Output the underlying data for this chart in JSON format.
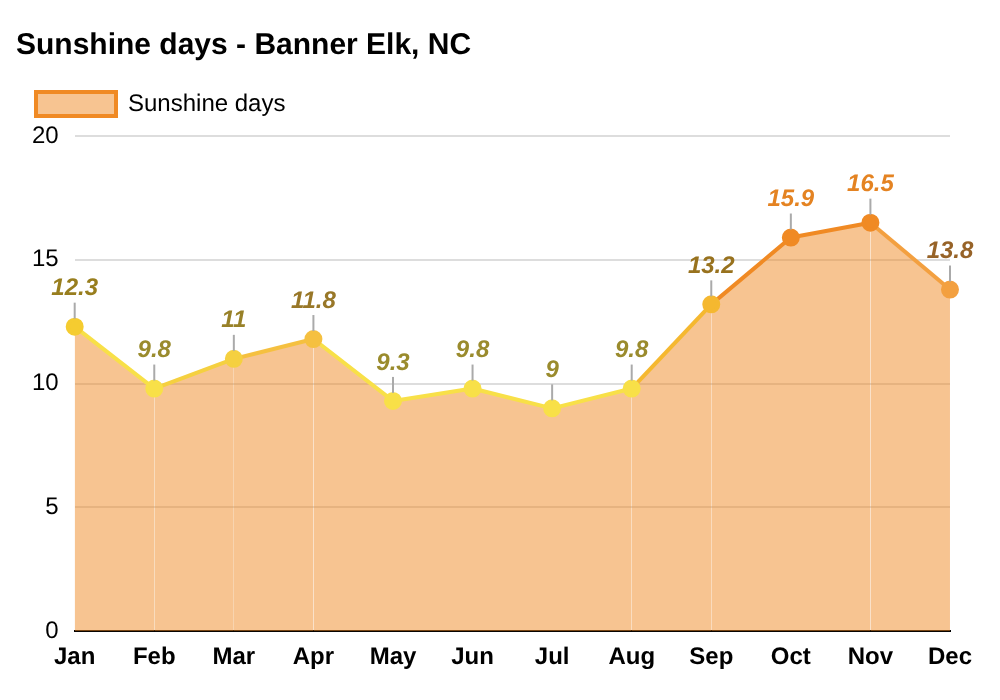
{
  "chart_data": {
    "type": "area",
    "title": "Sunshine days - Banner Elk, NC",
    "categories": [
      "Jan",
      "Feb",
      "Mar",
      "Apr",
      "May",
      "Jun",
      "Jul",
      "Aug",
      "Sep",
      "Oct",
      "Nov",
      "Dec"
    ],
    "series": [
      {
        "name": "Sunshine days",
        "color": "#f08a24",
        "values": [
          12.3,
          9.8,
          11,
          11.8,
          9.3,
          9.8,
          9,
          9.8,
          13.2,
          15.9,
          16.5,
          13.8
        ],
        "colors": [
          "#f5cc30",
          "#f8e048",
          "#f5d040",
          "#f5c040",
          "#f8e048",
          "#f8e048",
          "#f8e048",
          "#f8e048",
          "#f5b830",
          "#f08a24",
          "#f08a24",
          "#f3a040"
        ]
      }
    ],
    "ylim": [
      0,
      20
    ],
    "yticks": [
      0,
      5,
      10,
      15,
      20
    ],
    "grid": "y",
    "legend": "top left",
    "marker": "circle",
    "data_labels": true
  }
}
